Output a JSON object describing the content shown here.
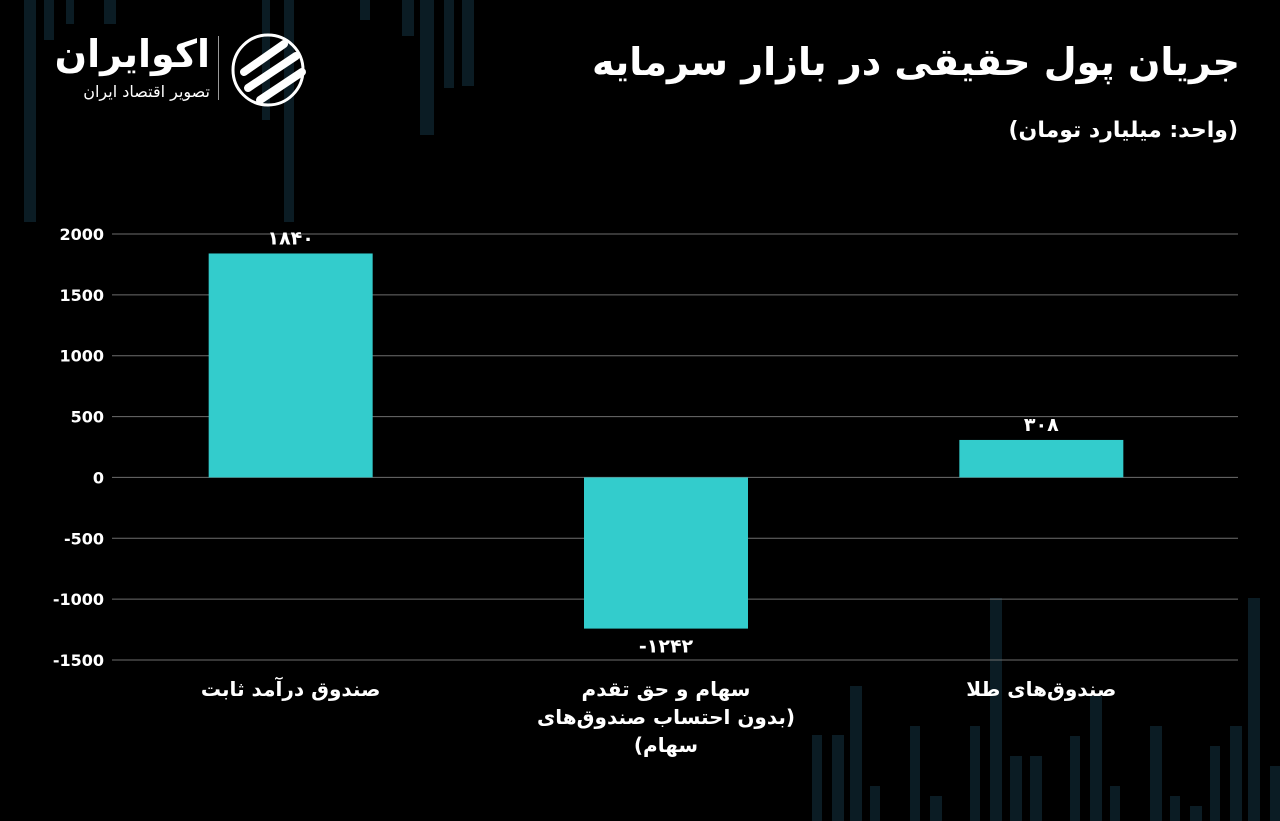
{
  "brand": {
    "name": "اکوایران",
    "tagline": "تصویر اقتصاد ایران"
  },
  "title": "جریان پول حقیقی در بازار سرمایه",
  "unit_note": "(واحد: میلیارد تومان)",
  "colors": {
    "background": "#000000",
    "bar": "#33cccc",
    "grid": "#6e6e6e",
    "text": "#ffffff"
  },
  "chart_data": {
    "type": "bar",
    "categories": [
      "صندوق درآمد ثابت",
      "سهام و حق تقدم",
      "صندوق‌های طلا"
    ],
    "category_notes": [
      "",
      "(بدون احتساب صندوق‌های سهام)",
      ""
    ],
    "values": [
      1840,
      -1242,
      308
    ],
    "data_labels": [
      "۱۸۴۰",
      "-۱۲۴۲",
      "۳۰۸"
    ],
    "yticks": [
      2000,
      1500,
      1000,
      500,
      0,
      -500,
      -1000,
      -1500
    ],
    "ytick_labels": [
      "2000",
      "1500",
      "1000",
      "500",
      "0",
      "-500",
      "-1000",
      "-1500"
    ],
    "ylim": [
      -1500,
      2000
    ],
    "grid": true,
    "legend": "none"
  }
}
